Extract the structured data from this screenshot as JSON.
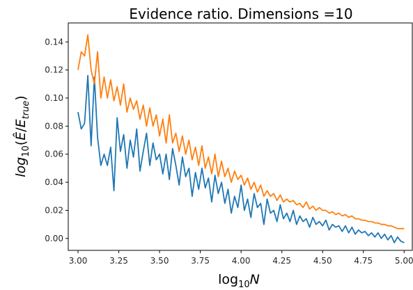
{
  "chart_data": {
    "type": "line",
    "title": "Evidence ratio.  Dimensions =10",
    "xlabel": {
      "base": "log",
      "sub": "10",
      "var": "N"
    },
    "ylabel": {
      "pre": "log",
      "sub1": "10",
      "open": "(",
      "e1": "Ê",
      "slash": "/",
      "e2": "E",
      "sub2": "true",
      "close": ")"
    },
    "xlim": [
      2.94,
      5.05
    ],
    "ylim": [
      -0.0085,
      0.1535
    ],
    "xticks": [
      3.0,
      3.25,
      3.5,
      3.75,
      4.0,
      4.25,
      4.5,
      4.75,
      5.0
    ],
    "xtick_labels": [
      "3.00",
      "3.25",
      "3.50",
      "3.75",
      "4.00",
      "4.25",
      "4.50",
      "4.75",
      "5.00"
    ],
    "yticks": [
      0.0,
      0.02,
      0.04,
      0.06,
      0.08,
      0.1,
      0.12,
      0.14
    ],
    "ytick_labels": [
      "0.00",
      "0.02",
      "0.04",
      "0.06",
      "0.08",
      "0.10",
      "0.12",
      "0.14"
    ],
    "grid": false,
    "colors": {
      "series_1": "#1f77b4",
      "series_2": "#ff7f0e"
    },
    "series": [
      {
        "color": "#1f77b4",
        "x": [
          3.0,
          3.02,
          3.04,
          3.06,
          3.08,
          3.1,
          3.12,
          3.14,
          3.16,
          3.18,
          3.2,
          3.22,
          3.24,
          3.26,
          3.28,
          3.3,
          3.32,
          3.34,
          3.36,
          3.38,
          3.4,
          3.42,
          3.44,
          3.46,
          3.48,
          3.5,
          3.52,
          3.54,
          3.56,
          3.58,
          3.6,
          3.62,
          3.64,
          3.66,
          3.68,
          3.7,
          3.72,
          3.74,
          3.76,
          3.78,
          3.8,
          3.82,
          3.84,
          3.86,
          3.88,
          3.9,
          3.92,
          3.94,
          3.96,
          3.98,
          4.0,
          4.02,
          4.04,
          4.06,
          4.08,
          4.1,
          4.12,
          4.14,
          4.16,
          4.18,
          4.2,
          4.22,
          4.24,
          4.26,
          4.28,
          4.3,
          4.32,
          4.34,
          4.36,
          4.38,
          4.4,
          4.42,
          4.44,
          4.46,
          4.48,
          4.5,
          4.52,
          4.54,
          4.56,
          4.58,
          4.6,
          4.62,
          4.64,
          4.66,
          4.68,
          4.7,
          4.72,
          4.74,
          4.76,
          4.78,
          4.8,
          4.82,
          4.84,
          4.86,
          4.88,
          4.9,
          4.92,
          4.94,
          4.96,
          4.98,
          5.0
        ],
        "y": [
          0.09,
          0.078,
          0.082,
          0.116,
          0.066,
          0.115,
          0.072,
          0.052,
          0.06,
          0.052,
          0.065,
          0.034,
          0.086,
          0.062,
          0.074,
          0.05,
          0.07,
          0.058,
          0.078,
          0.048,
          0.062,
          0.075,
          0.052,
          0.068,
          0.056,
          0.06,
          0.046,
          0.06,
          0.042,
          0.064,
          0.052,
          0.038,
          0.058,
          0.044,
          0.05,
          0.03,
          0.047,
          0.035,
          0.05,
          0.036,
          0.043,
          0.026,
          0.045,
          0.032,
          0.04,
          0.025,
          0.035,
          0.018,
          0.03,
          0.022,
          0.038,
          0.02,
          0.028,
          0.015,
          0.032,
          0.022,
          0.025,
          0.01,
          0.028,
          0.018,
          0.02,
          0.012,
          0.024,
          0.014,
          0.018,
          0.012,
          0.02,
          0.01,
          0.016,
          0.012,
          0.014,
          0.008,
          0.015,
          0.01,
          0.012,
          0.009,
          0.013,
          0.006,
          0.01,
          0.008,
          0.009,
          0.005,
          0.009,
          0.004,
          0.008,
          0.003,
          0.006,
          0.004,
          0.005,
          0.002,
          0.004,
          0.001,
          0.004,
          0.0,
          0.003,
          -0.001,
          0.002,
          -0.003,
          0.001,
          -0.002,
          -0.003
        ]
      },
      {
        "color": "#ff7f0e",
        "x": [
          3.0,
          3.02,
          3.04,
          3.06,
          3.08,
          3.1,
          3.12,
          3.14,
          3.16,
          3.18,
          3.2,
          3.22,
          3.24,
          3.26,
          3.28,
          3.3,
          3.32,
          3.34,
          3.36,
          3.38,
          3.4,
          3.42,
          3.44,
          3.46,
          3.48,
          3.5,
          3.52,
          3.54,
          3.56,
          3.58,
          3.6,
          3.62,
          3.64,
          3.66,
          3.68,
          3.7,
          3.72,
          3.74,
          3.76,
          3.78,
          3.8,
          3.82,
          3.84,
          3.86,
          3.88,
          3.9,
          3.92,
          3.94,
          3.96,
          3.98,
          4.0,
          4.02,
          4.04,
          4.06,
          4.08,
          4.1,
          4.12,
          4.14,
          4.16,
          4.18,
          4.2,
          4.22,
          4.24,
          4.26,
          4.28,
          4.3,
          4.32,
          4.34,
          4.36,
          4.38,
          4.4,
          4.42,
          4.44,
          4.46,
          4.48,
          4.5,
          4.52,
          4.54,
          4.56,
          4.58,
          4.6,
          4.62,
          4.64,
          4.66,
          4.68,
          4.7,
          4.72,
          4.74,
          4.76,
          4.78,
          4.8,
          4.82,
          4.84,
          4.86,
          4.88,
          4.9,
          4.92,
          4.94,
          4.96,
          4.98,
          5.0
        ],
        "y": [
          0.12,
          0.133,
          0.13,
          0.145,
          0.12,
          0.11,
          0.133,
          0.1,
          0.115,
          0.1,
          0.113,
          0.098,
          0.108,
          0.095,
          0.11,
          0.09,
          0.1,
          0.092,
          0.098,
          0.085,
          0.095,
          0.08,
          0.093,
          0.08,
          0.088,
          0.073,
          0.085,
          0.068,
          0.088,
          0.068,
          0.075,
          0.062,
          0.073,
          0.06,
          0.07,
          0.056,
          0.065,
          0.052,
          0.066,
          0.05,
          0.058,
          0.046,
          0.06,
          0.044,
          0.055,
          0.044,
          0.05,
          0.04,
          0.048,
          0.042,
          0.045,
          0.038,
          0.043,
          0.035,
          0.04,
          0.033,
          0.038,
          0.03,
          0.034,
          0.03,
          0.032,
          0.027,
          0.031,
          0.026,
          0.028,
          0.026,
          0.027,
          0.024,
          0.025,
          0.022,
          0.026,
          0.021,
          0.023,
          0.02,
          0.022,
          0.02,
          0.02,
          0.018,
          0.019,
          0.017,
          0.018,
          0.016,
          0.017,
          0.015,
          0.016,
          0.014,
          0.014,
          0.013,
          0.013,
          0.012,
          0.012,
          0.011,
          0.011,
          0.01,
          0.01,
          0.009,
          0.009,
          0.008,
          0.007,
          0.007,
          0.007
        ]
      }
    ]
  }
}
